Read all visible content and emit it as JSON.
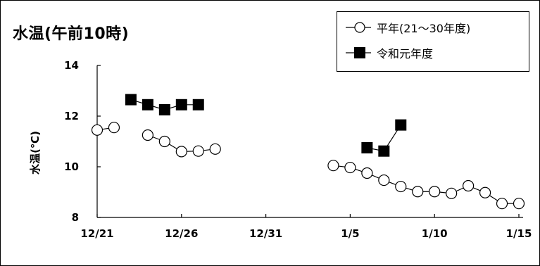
{
  "chart_data": {
    "type": "line",
    "title": "水温(午前10時)",
    "xlabel": "",
    "ylabel": "水温(℃)",
    "ylim": [
      8,
      14
    ],
    "yticks": [
      "8",
      "10",
      "12",
      "14"
    ],
    "xticks": [
      "12/21",
      "12/26",
      "12/31",
      "1/5",
      "1/10",
      "1/15"
    ],
    "xrange": [
      "12/21",
      "1/15"
    ],
    "grid": false,
    "legend_position": "top-right",
    "series": [
      {
        "name": "平年(21〜30年度)",
        "marker": "open-circle",
        "color": "#000000",
        "segments": [
          [
            {
              "x": "12/21",
              "y": 11.45
            },
            {
              "x": "12/22",
              "y": 11.55
            }
          ],
          [
            {
              "x": "12/24",
              "y": 11.25
            },
            {
              "x": "12/25",
              "y": 11.0
            },
            {
              "x": "12/26",
              "y": 10.6
            },
            {
              "x": "12/27",
              "y": 10.62
            },
            {
              "x": "12/28",
              "y": 10.7
            }
          ],
          [
            {
              "x": "1/4",
              "y": 10.05
            },
            {
              "x": "1/5",
              "y": 9.97
            },
            {
              "x": "1/6",
              "y": 9.75
            },
            {
              "x": "1/7",
              "y": 9.47
            },
            {
              "x": "1/8",
              "y": 9.22
            },
            {
              "x": "1/9",
              "y": 9.02
            },
            {
              "x": "1/10",
              "y": 9.02
            },
            {
              "x": "1/11",
              "y": 8.95
            },
            {
              "x": "1/12",
              "y": 9.25
            },
            {
              "x": "1/13",
              "y": 8.98
            },
            {
              "x": "1/14",
              "y": 8.55
            },
            {
              "x": "1/15",
              "y": 8.55
            }
          ]
        ]
      },
      {
        "name": "令和元年度",
        "marker": "filled-square",
        "color": "#000000",
        "segments": [
          [
            {
              "x": "12/23",
              "y": 12.65
            },
            {
              "x": "12/24",
              "y": 12.45
            },
            {
              "x": "12/25",
              "y": 12.25
            },
            {
              "x": "12/26",
              "y": 12.45
            },
            {
              "x": "12/27",
              "y": 12.45
            }
          ],
          [
            {
              "x": "1/6",
              "y": 10.75
            },
            {
              "x": "1/7",
              "y": 10.62
            },
            {
              "x": "1/8",
              "y": 11.65
            }
          ]
        ]
      }
    ]
  }
}
